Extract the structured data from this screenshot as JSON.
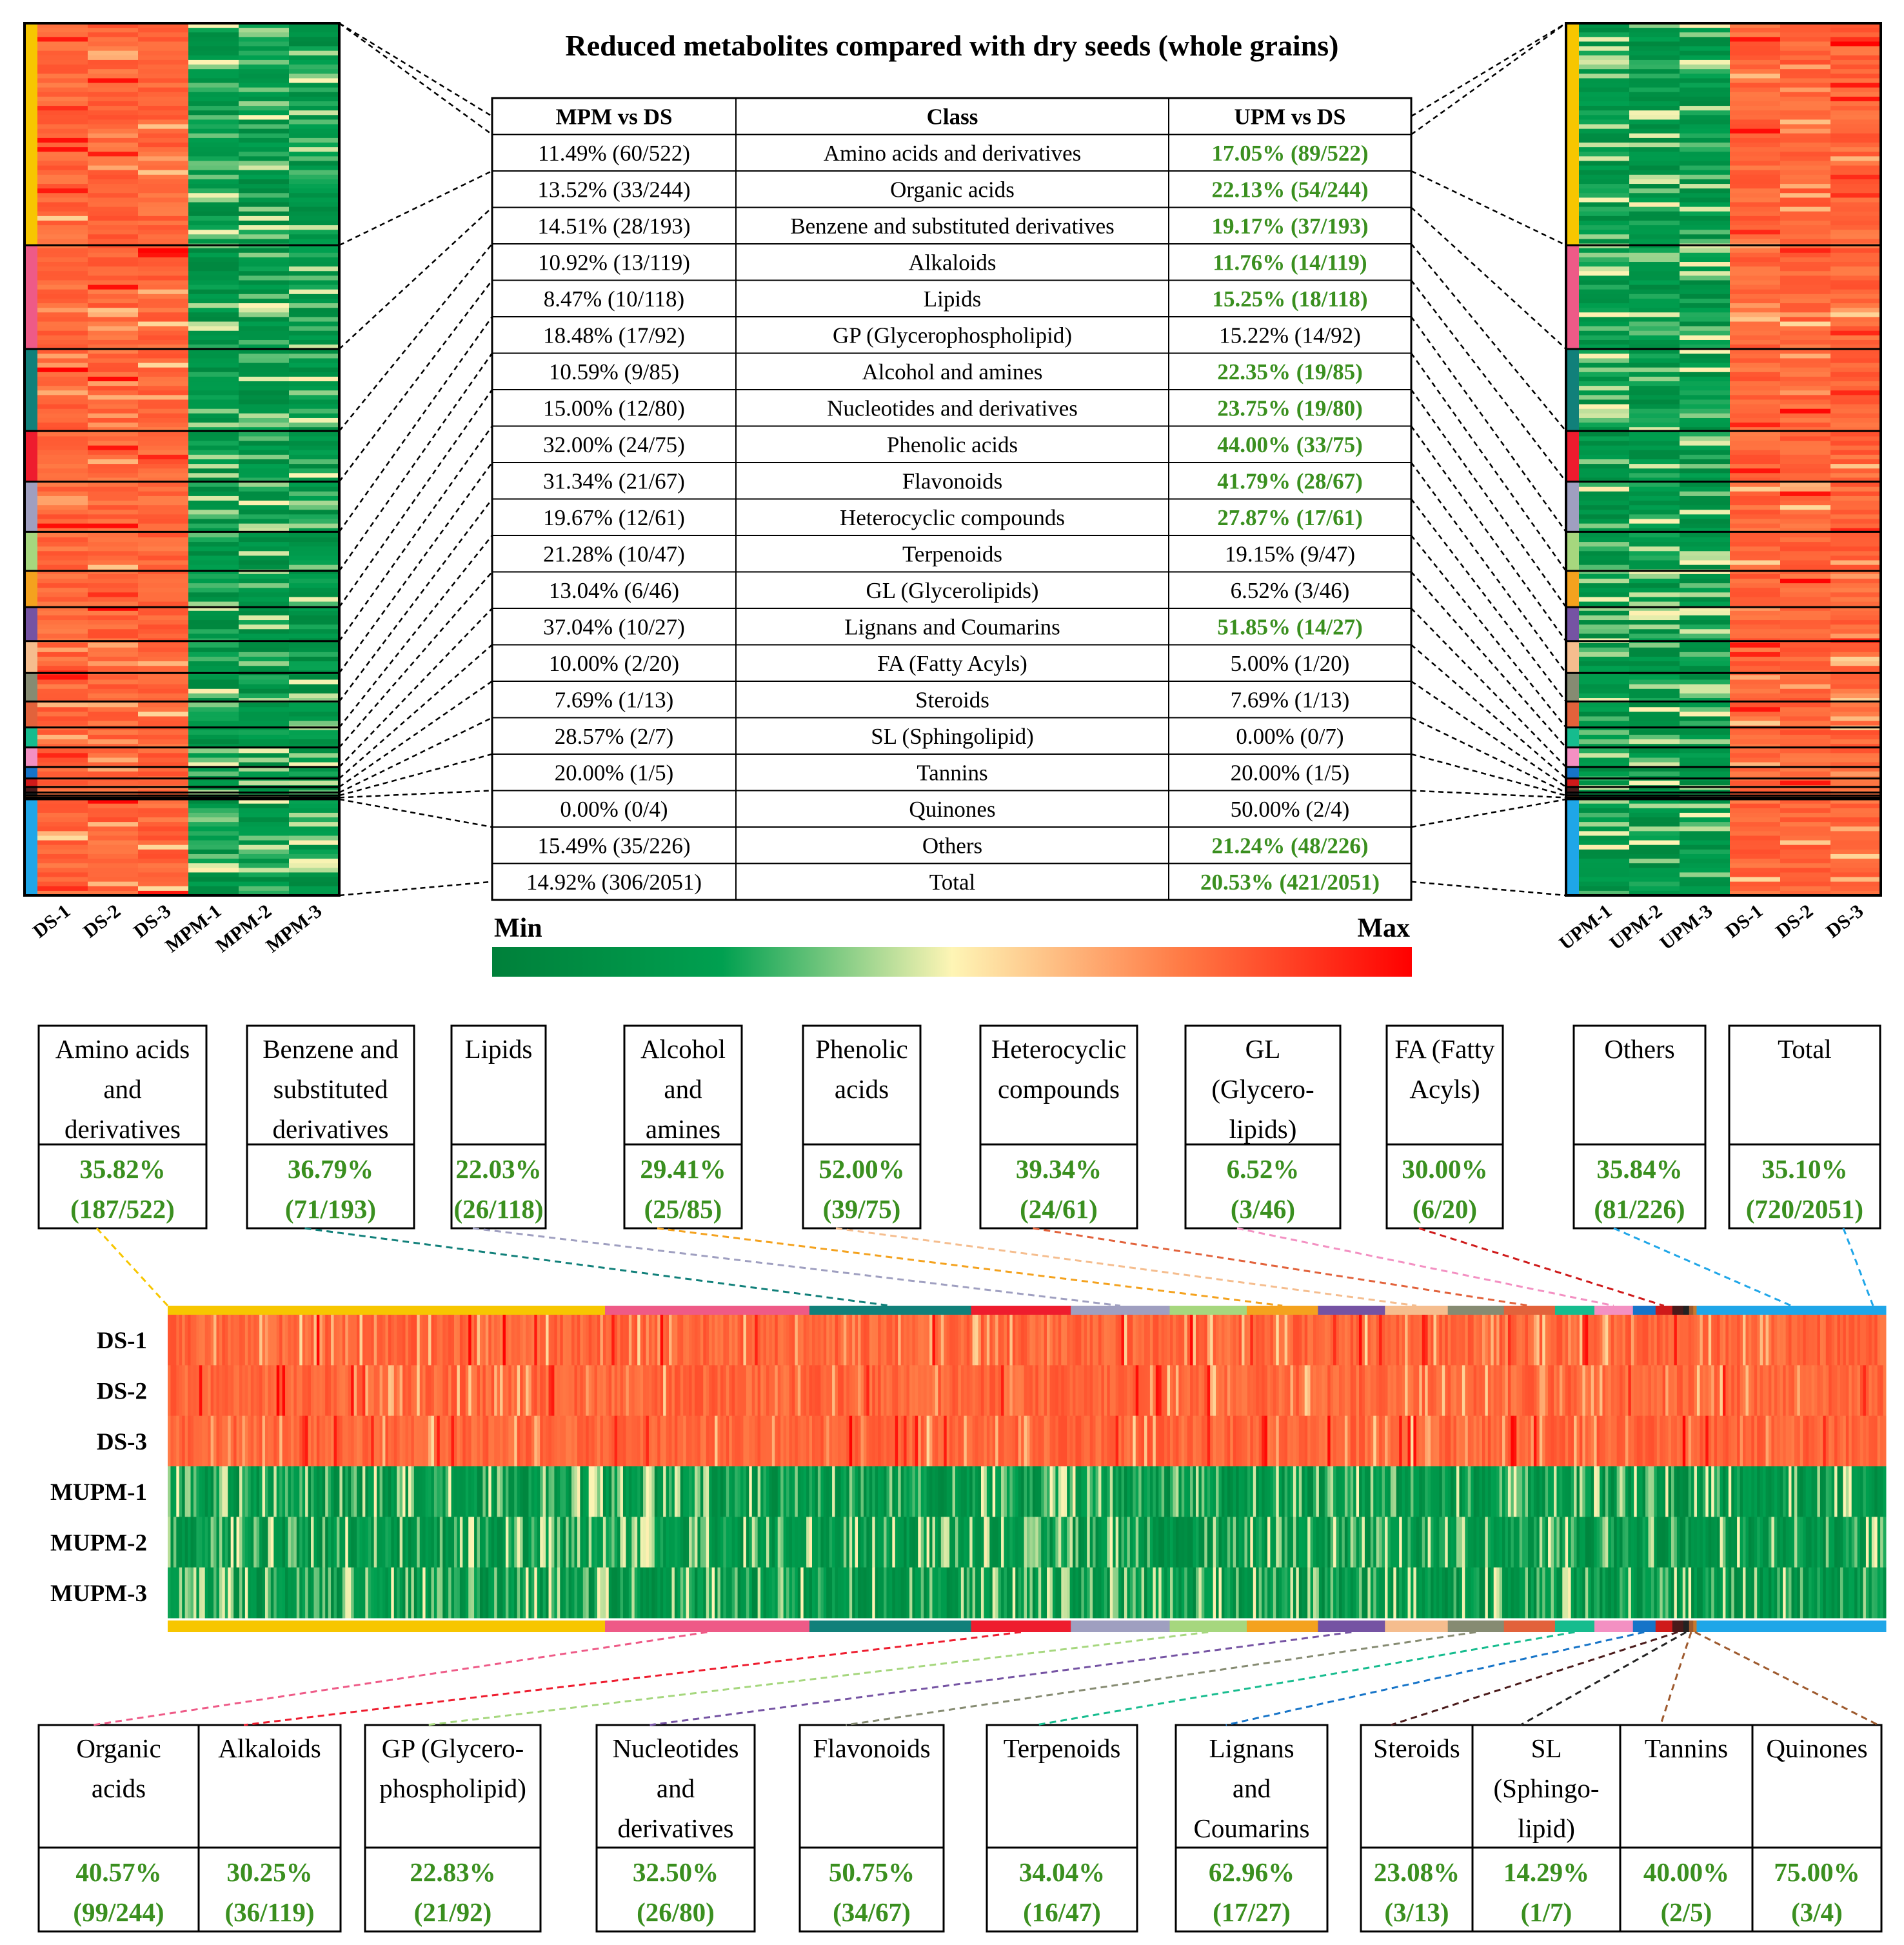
{
  "chart_data": [
    {
      "type": "table",
      "title": "Reduced metabolites compared with dry seeds (whole grains)",
      "columns": [
        "MPM vs DS",
        "Class",
        "UPM vs DS"
      ],
      "rows": [
        {
          "mpm": "11.49% (60/522)",
          "class": "Amino acids and derivatives",
          "upm": "17.05% (89/522)",
          "upm_highlight": true
        },
        {
          "mpm": "13.52% (33/244)",
          "class": "Organic acids",
          "upm": "22.13% (54/244)",
          "upm_highlight": true
        },
        {
          "mpm": "14.51% (28/193)",
          "class": "Benzene and substituted derivatives",
          "upm": "19.17% (37/193)",
          "upm_highlight": true
        },
        {
          "mpm": "10.92% (13/119)",
          "class": "Alkaloids",
          "upm": "11.76% (14/119)",
          "upm_highlight": true
        },
        {
          "mpm": "8.47% (10/118)",
          "class": "Lipids",
          "upm": "15.25% (18/118)",
          "upm_highlight": true
        },
        {
          "mpm": "18.48% (17/92)",
          "class": "GP (Glycerophospholipid)",
          "upm": "15.22% (14/92)",
          "upm_highlight": false
        },
        {
          "mpm": "10.59% (9/85)",
          "class": "Alcohol and amines",
          "upm": "22.35% (19/85)",
          "upm_highlight": true
        },
        {
          "mpm": "15.00% (12/80)",
          "class": "Nucleotides and derivatives",
          "upm": "23.75% (19/80)",
          "upm_highlight": true
        },
        {
          "mpm": "32.00% (24/75)",
          "class": "Phenolic acids",
          "upm": "44.00% (33/75)",
          "upm_highlight": true
        },
        {
          "mpm": "31.34% (21/67)",
          "class": "Flavonoids",
          "upm": "41.79% (28/67)",
          "upm_highlight": true
        },
        {
          "mpm": "19.67% (12/61)",
          "class": "Heterocyclic compounds",
          "upm": "27.87% (17/61)",
          "upm_highlight": true
        },
        {
          "mpm": "21.28% (10/47)",
          "class": "Terpenoids",
          "upm": "19.15% (9/47)",
          "upm_highlight": false
        },
        {
          "mpm": "13.04% (6/46)",
          "class": "GL (Glycerolipids)",
          "upm": "6.52% (3/46)",
          "upm_highlight": false
        },
        {
          "mpm": "37.04% (10/27)",
          "class": "Lignans and Coumarins",
          "upm": "51.85% (14/27)",
          "upm_highlight": true
        },
        {
          "mpm": "10.00% (2/20)",
          "class": "FA (Fatty Acyls)",
          "upm": "5.00% (1/20)",
          "upm_highlight": false
        },
        {
          "mpm": "7.69% (1/13)",
          "class": "Steroids",
          "upm": "7.69% (1/13)",
          "upm_highlight": false
        },
        {
          "mpm": "28.57% (2/7)",
          "class": "SL (Sphingolipid)",
          "upm": "0.00% (0/7)",
          "upm_highlight": false
        },
        {
          "mpm": "20.00% (1/5)",
          "class": "Tannins",
          "upm": "20.00% (1/5)",
          "upm_highlight": false
        },
        {
          "mpm": "0.00% (0/4)",
          "class": "Quinones",
          "upm": "50.00% (2/4)",
          "upm_highlight": false
        },
        {
          "mpm": "15.49% (35/226)",
          "class": "Others",
          "upm": "21.24% (48/226)",
          "upm_highlight": true
        },
        {
          "mpm": "14.92% (306/2051)",
          "class": "Total",
          "upm": "20.53% (421/2051)",
          "upm_highlight": true
        }
      ]
    },
    {
      "type": "heatmap",
      "columns": [
        "DS-1",
        "DS-2",
        "DS-3",
        "MPM-1",
        "MPM-2",
        "MPM-3"
      ]
    },
    {
      "type": "heatmap",
      "columns": [
        "UPM-1",
        "UPM-2",
        "UPM-3",
        "DS-1",
        "DS-2",
        "DS-3"
      ]
    },
    {
      "type": "heatmap",
      "rows": [
        "DS-1",
        "DS-2",
        "DS-3",
        "MUPM-1",
        "MUPM-2",
        "MUPM-3"
      ],
      "scale": {
        "min_label": "Min",
        "max_label": "Max",
        "colors": [
          "#00803a",
          "#00a050",
          "#fef5b5",
          "#ff7a45",
          "#ff0000"
        ]
      }
    },
    {
      "type": "table",
      "top_boxes": [
        {
          "label_lines": [
            "Amino acids",
            "and",
            "derivatives"
          ],
          "pct": "35.82%",
          "frac": "(187/522)"
        },
        {
          "label_lines": [
            "Benzene and",
            "substituted",
            "derivatives"
          ],
          "pct": "36.79%",
          "frac": "(71/193)"
        },
        {
          "label_lines": [
            "Lipids"
          ],
          "pct": "22.03%",
          "frac": "(26/118)"
        },
        {
          "label_lines": [
            "Alcohol",
            "and",
            "amines"
          ],
          "pct": "29.41%",
          "frac": "(25/85)"
        },
        {
          "label_lines": [
            "Phenolic",
            "acids"
          ],
          "pct": "52.00%",
          "frac": "(39/75)"
        },
        {
          "label_lines": [
            "Heterocyclic",
            "compounds"
          ],
          "pct": "39.34%",
          "frac": "(24/61)"
        },
        {
          "label_lines": [
            "GL",
            "(Glycero-",
            "lipids)"
          ],
          "pct": "6.52%",
          "frac": "(3/46)"
        },
        {
          "label_lines": [
            "FA (Fatty",
            "Acyls)"
          ],
          "pct": "30.00%",
          "frac": "(6/20)"
        },
        {
          "label_lines": [
            "Others"
          ],
          "pct": "35.84%",
          "frac": "(81/226)"
        },
        {
          "label_lines": [
            "Total"
          ],
          "pct": "35.10%",
          "frac": "(720/2051)"
        }
      ],
      "bottom_boxes": [
        {
          "label_lines": [
            "Organic",
            "acids"
          ],
          "pct": "40.57%",
          "frac": "(99/244)"
        },
        {
          "label_lines": [
            "Alkaloids"
          ],
          "pct": "30.25%",
          "frac": "(36/119)"
        },
        {
          "label_lines": [
            "GP (Glycero-",
            "phospholipid)"
          ],
          "pct": "22.83%",
          "frac": "(21/92)"
        },
        {
          "label_lines": [
            "Nucleotides",
            "and",
            "derivatives"
          ],
          "pct": "32.50%",
          "frac": "(26/80)"
        },
        {
          "label_lines": [
            "Flavonoids"
          ],
          "pct": "50.75%",
          "frac": "(34/67)"
        },
        {
          "label_lines": [
            "Terpenoids"
          ],
          "pct": "34.04%",
          "frac": "(16/47)"
        },
        {
          "label_lines": [
            "Lignans",
            "and",
            "Coumarins"
          ],
          "pct": "62.96%",
          "frac": "(17/27)"
        },
        {
          "label_lines": [
            "Steroids"
          ],
          "pct": "23.08%",
          "frac": "(3/13)"
        },
        {
          "label_lines": [
            "SL",
            "(Sphingo-",
            "lipid)"
          ],
          "pct": "14.29%",
          "frac": "(1/7)"
        },
        {
          "label_lines": [
            "Tannins"
          ],
          "pct": "40.00%",
          "frac": "(2/5)"
        },
        {
          "label_lines": [
            "Quinones"
          ],
          "pct": "75.00%",
          "frac": "(3/4)"
        }
      ]
    }
  ],
  "class_colors": [
    {
      "class": "Amino acids and derivatives",
      "color": "#f7c600"
    },
    {
      "class": "Organic acids",
      "color": "#ee5a87"
    },
    {
      "class": "Benzene and substituted derivatives",
      "color": "#11807a"
    },
    {
      "class": "Alkaloids",
      "color": "#ee1c2e"
    },
    {
      "class": "Lipids",
      "color": "#9f9fc0"
    },
    {
      "class": "GP (Glycerophospholipid)",
      "color": "#a6d77e"
    },
    {
      "class": "Alcohol and amines",
      "color": "#f4a21e"
    },
    {
      "class": "Nucleotides and derivatives",
      "color": "#7553a3"
    },
    {
      "class": "Phenolic acids",
      "color": "#f5bd8e"
    },
    {
      "class": "Flavonoids",
      "color": "#868b72"
    },
    {
      "class": "Heterocyclic compounds",
      "color": "#e2623b"
    },
    {
      "class": "Terpenoids",
      "color": "#16bc8e"
    },
    {
      "class": "GL (Glycerolipids)",
      "color": "#f390c2"
    },
    {
      "class": "Lignans and Coumarins",
      "color": "#1674c8"
    },
    {
      "class": "FA (Fatty Acyls)",
      "color": "#cf1a1a"
    },
    {
      "class": "Steroids",
      "color": "#4a1a1a"
    },
    {
      "class": "SL (Sphingolipid)",
      "color": "#222222"
    },
    {
      "class": "Tannins",
      "color": "#9e5a2e"
    },
    {
      "class": "Quinones",
      "color": "#c87a2e"
    },
    {
      "class": "Others",
      "color": "#1fa6e8"
    }
  ]
}
